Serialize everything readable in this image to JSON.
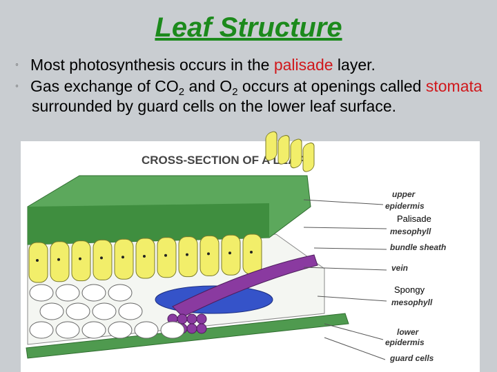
{
  "slide": {
    "title": "Leaf Structure",
    "bullets": [
      {
        "segments": [
          {
            "text": "Most photosynthesis occurs in the ",
            "style": "plain"
          },
          {
            "text": "palisade",
            "style": "red"
          },
          {
            "text": " layer.",
            "style": "plain"
          }
        ]
      },
      {
        "segments": [
          {
            "text": "Gas exchange of CO",
            "style": "plain"
          },
          {
            "text": "2",
            "style": "sub"
          },
          {
            "text": " and O",
            "style": "plain"
          },
          {
            "text": "2",
            "style": "sub"
          },
          {
            "text": " occurs at openings called ",
            "style": "plain"
          },
          {
            "text": "stomata",
            "style": "red"
          },
          {
            "text": " surrounded by guard cells on the lower leaf surface.",
            "style": "plain"
          }
        ]
      }
    ],
    "figure": {
      "title": "CROSS-SECTION OF A LEAF",
      "labels": [
        {
          "text": "upper",
          "style": "italic"
        },
        {
          "text": "epidermis",
          "style": "italic"
        },
        {
          "text": "Palisade",
          "style": "plain"
        },
        {
          "text": "mesophyll",
          "style": "italic"
        },
        {
          "text": "bundle sheath",
          "style": "italic"
        },
        {
          "text": "vein",
          "style": "italic"
        },
        {
          "text": "Spongy",
          "style": "plain"
        },
        {
          "text": "mesophyll",
          "style": "italic"
        },
        {
          "text": "lower",
          "style": "italic"
        },
        {
          "text": "epidermis",
          "style": "italic"
        },
        {
          "text": "guard cells",
          "style": "italic"
        }
      ]
    }
  }
}
